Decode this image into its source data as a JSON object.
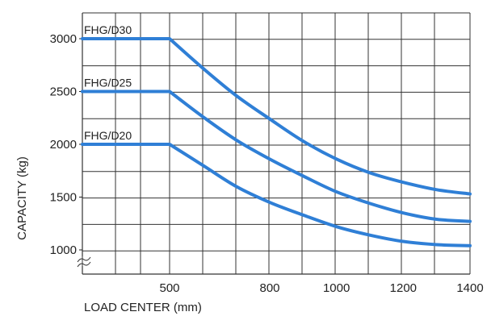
{
  "chart_data": {
    "type": "line",
    "title": "",
    "xlabel": "LOAD CENTER (mm)",
    "ylabel": "CAPACITY (kg)",
    "x_ticks": [
      "500",
      "800",
      "1000",
      "1200",
      "1400"
    ],
    "y_ticks": [
      "3000",
      "2500",
      "2000",
      "1500",
      "1000"
    ],
    "ylim": [
      1000,
      3000
    ],
    "xlim": [
      500,
      1400
    ],
    "grid": true,
    "series": [
      {
        "name": "FHG/D30",
        "x": [
          500,
          600,
          700,
          800,
          900,
          1000,
          1100,
          1200,
          1300,
          1400
        ],
        "y": [
          3000,
          2720,
          2460,
          2240,
          2030,
          1860,
          1730,
          1640,
          1570,
          1530
        ]
      },
      {
        "name": "FHG/D25",
        "x": [
          500,
          600,
          700,
          800,
          900,
          1000,
          1100,
          1200,
          1300,
          1400
        ],
        "y": [
          2500,
          2260,
          2040,
          1860,
          1700,
          1550,
          1440,
          1350,
          1290,
          1270
        ]
      },
      {
        "name": "FHG/D20",
        "x": [
          500,
          600,
          700,
          800,
          900,
          1000,
          1100,
          1200,
          1300,
          1400
        ],
        "y": [
          2000,
          1800,
          1600,
          1450,
          1330,
          1220,
          1140,
          1080,
          1050,
          1040
        ]
      }
    ],
    "colors": {
      "line": "#2f7fd6",
      "grid": "#333333"
    }
  }
}
